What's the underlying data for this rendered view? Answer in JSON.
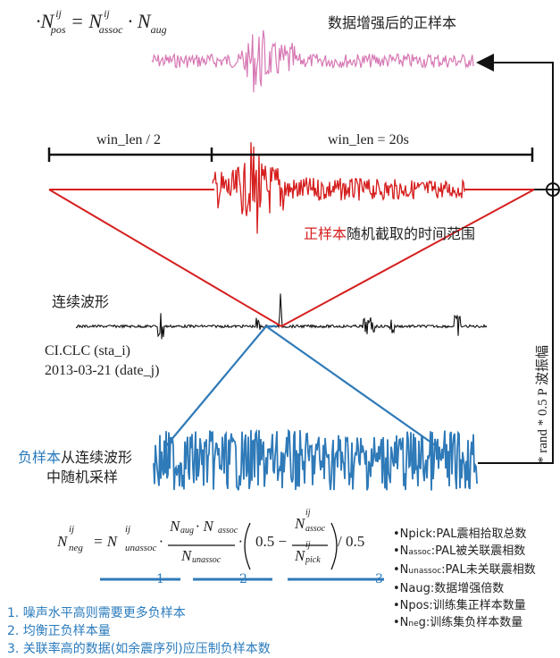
{
  "formulas": {
    "pos_text": "·N",
    "pos_sup": "ij",
    "pos_sub": "pos",
    "pos_rest": " = N",
    "assoc_sub": "assoc",
    "dot": " · N",
    "aug_sub": "aug",
    "neg_text": "N",
    "neg_sup": "ij",
    "neg_sub": "neg",
    "neg_rhs": "= N",
    "unassoc_sub": "unassoc",
    "frac_num": "N",
    "frac_num_sub1": "aug",
    "frac_num_mid": " · N",
    "frac_num_sub2": "assoc",
    "frac_den": "N",
    "frac_den_sub": "unassoc",
    "paren_text": "0.5 −",
    "inner_num": "N",
    "inner_num_sub": "assoc",
    "inner_den": "N",
    "inner_den_sub": "pick",
    "tail": "/ 0.5"
  },
  "labels": {
    "augmented_positive": "数据增强后的正样本",
    "win_half": "win_len / 2",
    "win_full": "win_len = 20s",
    "positive_word": "正样本",
    "positive_range": "随机截取的时间范围",
    "continuous": "连续波形",
    "station": "CI.CLC (sta_i)",
    "date": "2013-03-21 (date_j)",
    "negative_word": "负样本",
    "negative_line1": "从连续波形",
    "negative_line2": "中随机采样",
    "rand_amp": "* rand * 0.5 P 波振幅"
  },
  "markers": [
    "1",
    "2",
    "3"
  ],
  "notes": [
    "1. 噪声水平高则需要更多负样本",
    "2. 均衡正负样本量",
    "3. 关联率高的数据(如余震序列)应压制负样本数"
  ],
  "legend": [
    {
      "sym": "•Npick:",
      "text": "PAL震相拾取总数"
    },
    {
      "sym": "•N",
      "sub": "assoc",
      "text": ":PAL被关联震相数"
    },
    {
      "sym": "•N",
      "sub": "unassoc",
      "text": ":PAL未关联震相数"
    },
    {
      "sym": "•Naug:",
      "text": "数据增强倍数"
    },
    {
      "sym": "•Npos:",
      "text": "训练集正样本数量"
    },
    {
      "sym": "•N",
      "sub": "ne",
      "text": "g:训练集负样本数量"
    }
  ],
  "colors": {
    "pink": "#d778b4",
    "red": "#d61f1f",
    "blue": "#2f7ab8",
    "black": "#111111"
  }
}
